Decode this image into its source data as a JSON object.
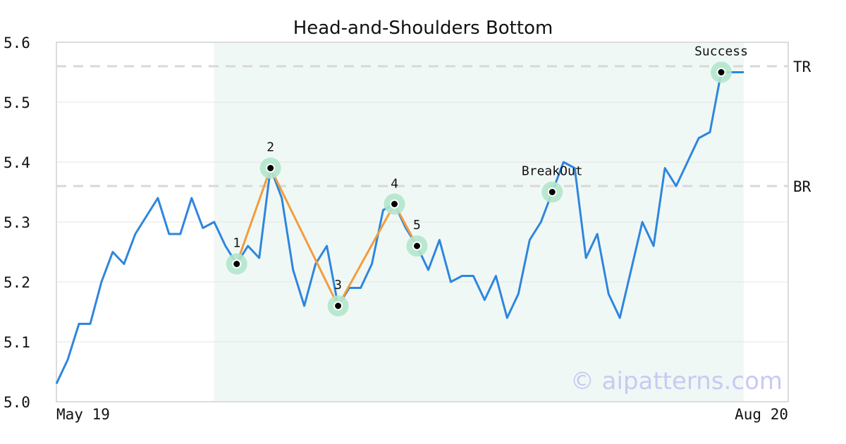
{
  "chart_data": {
    "type": "line",
    "title": "Head-and-Shoulders Bottom",
    "ylim": [
      5.0,
      5.6
    ],
    "yticks": [
      "5.0",
      "5.1",
      "5.2",
      "5.3",
      "5.4",
      "5.5",
      "5.6"
    ],
    "xtick_labels": [
      "May 19",
      "Aug 20"
    ],
    "grid": true,
    "watermark": "© aipatterns.com",
    "colors": {
      "price": "#2e86de",
      "pattern": "#f39c3c",
      "highlight": "#e6f3ee",
      "marker_halo": "#b3e6cc",
      "level": "#d8d8d8"
    },
    "highlight_range": [
      14,
      61
    ],
    "series": [
      {
        "values": [
          5.03,
          5.07,
          5.13,
          5.13,
          5.2,
          5.25,
          5.23,
          5.28,
          5.31,
          5.34,
          5.28,
          5.28,
          5.34,
          5.29,
          5.3,
          5.26,
          5.23,
          5.26,
          5.24,
          5.39,
          5.34,
          5.22,
          5.16,
          5.23,
          5.26,
          5.16,
          5.19,
          5.19,
          5.23,
          5.32,
          5.33,
          5.29,
          5.26,
          5.22,
          5.27,
          5.2,
          5.21,
          5.21,
          5.17,
          5.21,
          5.14,
          5.18,
          5.27,
          5.3,
          5.35,
          5.4,
          5.39,
          5.24,
          5.28,
          5.18,
          5.14,
          5.22,
          5.3,
          5.26,
          5.39,
          5.36,
          5.4,
          5.44,
          5.45,
          5.55,
          5.55,
          5.55
        ]
      }
    ],
    "levels": [
      {
        "label": "TR",
        "value": 5.56
      },
      {
        "label": "BR",
        "value": 5.36
      }
    ],
    "pattern_points": [
      {
        "label": "1",
        "x": 16,
        "y": 5.23
      },
      {
        "label": "2",
        "x": 19,
        "y": 5.39
      },
      {
        "label": "3",
        "x": 25,
        "y": 5.16
      },
      {
        "label": "4",
        "x": 30,
        "y": 5.33
      },
      {
        "label": "5",
        "x": 32,
        "y": 5.26
      }
    ],
    "events": [
      {
        "label": "BreakOut",
        "x": 44,
        "y": 5.35
      },
      {
        "label": "Success",
        "x": 59,
        "y": 5.55
      }
    ]
  }
}
